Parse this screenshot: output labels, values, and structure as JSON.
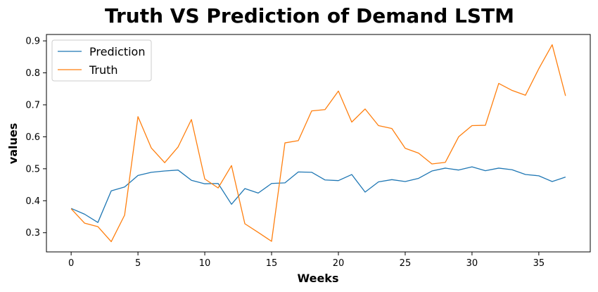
{
  "chart_data": {
    "type": "line",
    "title": "Truth VS Prediction of Demand LSTM",
    "xlabel": "Weeks",
    "ylabel": "values",
    "xlim": [
      -1.85,
      38.85
    ],
    "ylim": [
      0.24,
      0.92
    ],
    "x_ticks": [
      0,
      5,
      10,
      15,
      20,
      25,
      30,
      35
    ],
    "y_ticks": [
      0.3,
      0.4,
      0.5,
      0.6,
      0.7,
      0.8,
      0.9
    ],
    "grid": false,
    "legend_position": "top-left",
    "x": [
      0,
      1,
      2,
      3,
      4,
      5,
      6,
      7,
      8,
      9,
      10,
      11,
      12,
      13,
      14,
      15,
      16,
      17,
      18,
      19,
      20,
      21,
      22,
      23,
      24,
      25,
      26,
      27,
      28,
      29,
      30,
      31,
      32,
      33,
      34,
      35,
      36,
      37
    ],
    "series": [
      {
        "name": "Prediction",
        "color": "#1f77b4",
        "values": [
          0.376,
          0.358,
          0.332,
          0.431,
          0.443,
          0.479,
          0.489,
          0.493,
          0.496,
          0.464,
          0.453,
          0.454,
          0.389,
          0.438,
          0.424,
          0.454,
          0.456,
          0.49,
          0.489,
          0.465,
          0.463,
          0.482,
          0.427,
          0.459,
          0.466,
          0.46,
          0.47,
          0.493,
          0.502,
          0.496,
          0.506,
          0.494,
          0.502,
          0.497,
          0.482,
          0.478,
          0.46,
          0.474
        ]
      },
      {
        "name": "Truth",
        "color": "#ff7f0e",
        "values": [
          0.375,
          0.33,
          0.319,
          0.272,
          0.355,
          0.663,
          0.565,
          0.519,
          0.568,
          0.654,
          0.468,
          0.44,
          0.51,
          0.328,
          0.301,
          0.273,
          0.581,
          0.588,
          0.681,
          0.685,
          0.743,
          0.646,
          0.687,
          0.635,
          0.626,
          0.564,
          0.549,
          0.515,
          0.52,
          0.6,
          0.635,
          0.636,
          0.767,
          0.745,
          0.73,
          0.813,
          0.888,
          0.728
        ]
      }
    ]
  }
}
